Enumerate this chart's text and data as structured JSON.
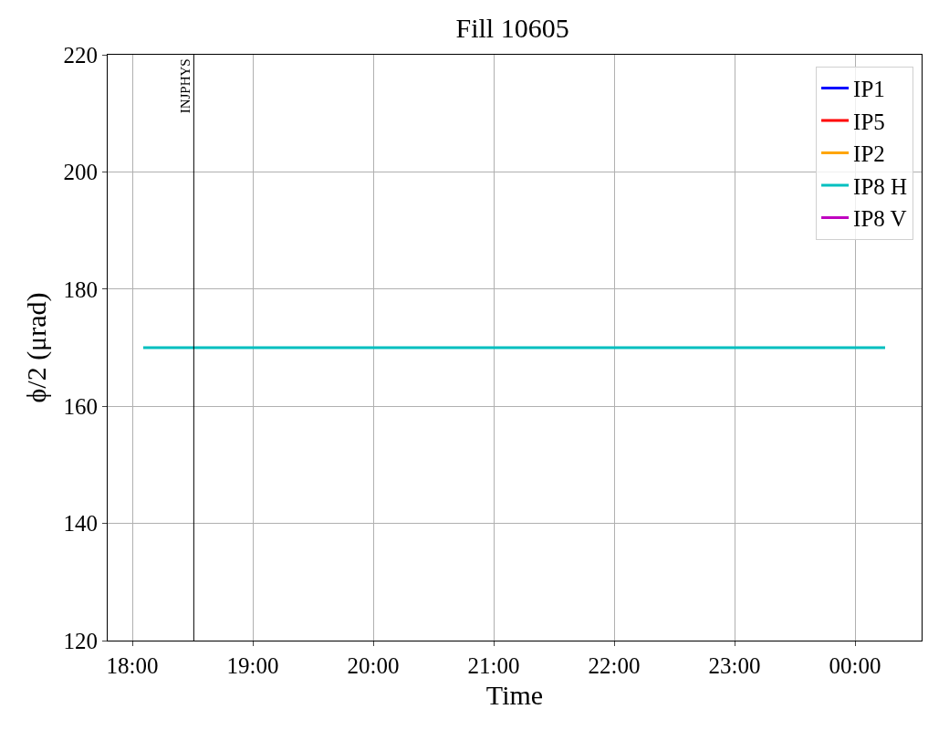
{
  "chart_data": {
    "type": "line",
    "title": "Fill 10605",
    "xlabel": "Time",
    "ylabel": "ϕ/2 (μrad)",
    "x": [
      18.09,
      24.25
    ],
    "series": [
      {
        "name": "IP1",
        "color": "#0000ff",
        "values": [
          null,
          null
        ]
      },
      {
        "name": "IP5",
        "color": "#ff0000",
        "values": [
          null,
          null
        ]
      },
      {
        "name": "IP2",
        "color": "#ffa500",
        "values": [
          null,
          null
        ]
      },
      {
        "name": "IP8 H",
        "color": "#00bfbf",
        "values": [
          170,
          170
        ]
      },
      {
        "name": "IP8 V",
        "color": "#bf00bf",
        "values": [
          null,
          null
        ]
      }
    ],
    "xlim": [
      17.795,
      24.553
    ],
    "xticks": [
      {
        "value": 18,
        "label": "18:00"
      },
      {
        "value": 19,
        "label": "19:00"
      },
      {
        "value": 20,
        "label": "20:00"
      },
      {
        "value": 21,
        "label": "21:00"
      },
      {
        "value": 22,
        "label": "22:00"
      },
      {
        "value": 23,
        "label": "23:00"
      },
      {
        "value": 24,
        "label": "00:00"
      }
    ],
    "ylim": [
      120,
      220
    ],
    "yticks": [
      120,
      140,
      160,
      180,
      200,
      220
    ],
    "ref_lines": [
      {
        "axis": "x",
        "value": 18.51,
        "label": "INJPHYS",
        "color": "#000000"
      }
    ],
    "grid": true,
    "legend": "top right",
    "marker": "none",
    "line_style": "solid"
  }
}
